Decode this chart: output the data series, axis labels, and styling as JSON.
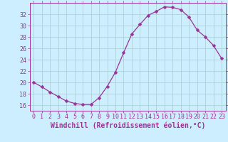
{
  "x": [
    0,
    1,
    2,
    3,
    4,
    5,
    6,
    7,
    8,
    9,
    10,
    11,
    12,
    13,
    14,
    15,
    16,
    17,
    18,
    19,
    20,
    21,
    22,
    23
  ],
  "y": [
    20,
    19.2,
    18.3,
    17.5,
    16.7,
    16.3,
    16.1,
    16.1,
    17.3,
    19.3,
    21.8,
    25.2,
    28.5,
    30.2,
    31.8,
    32.5,
    33.3,
    33.2,
    32.8,
    31.5,
    29.2,
    28.0,
    26.5,
    24.2
  ],
  "line_color": "#993399",
  "marker_color": "#993399",
  "bg_color": "#cceeff",
  "grid_color": "#aacccc",
  "axis_color": "#993399",
  "xlabel": "Windchill (Refroidissement éolien,°C)",
  "ylim": [
    15.0,
    34.0
  ],
  "xlim": [
    -0.5,
    23.5
  ],
  "yticks": [
    16,
    18,
    20,
    22,
    24,
    26,
    28,
    30,
    32
  ],
  "xticks": [
    0,
    1,
    2,
    3,
    4,
    5,
    6,
    7,
    8,
    9,
    10,
    11,
    12,
    13,
    14,
    15,
    16,
    17,
    18,
    19,
    20,
    21,
    22,
    23
  ],
  "xlabel_fontsize": 7.0,
  "tick_fontsize": 6.0,
  "marker_size": 2.5,
  "linewidth": 0.9
}
